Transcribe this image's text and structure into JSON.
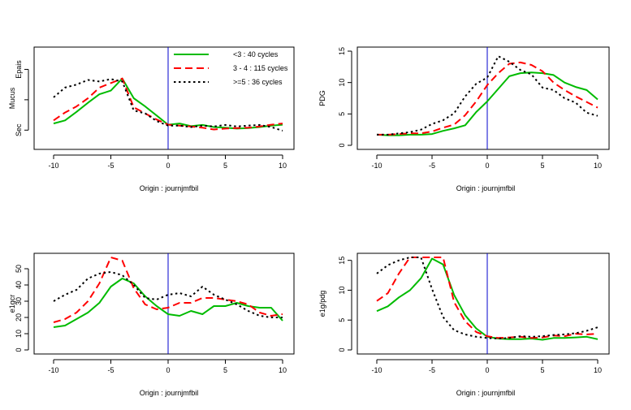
{
  "chart_data": [
    {
      "type": "line",
      "xlabel": "Origin :  journjmfbil",
      "ylabel": "Mucus",
      "xlim": [
        -10,
        10
      ],
      "x_ticks": [
        -10,
        -5,
        0,
        5,
        10
      ],
      "y_scale": "ordinal",
      "ylim": [
        0.5,
        3.6
      ],
      "y_ticks": [
        {
          "value": 1,
          "label": "Sec"
        },
        {
          "value": 2,
          "label": ""
        },
        {
          "value": 3,
          "label": "Epais"
        }
      ],
      "vline_x": 0,
      "legend": {
        "position": "top-right"
      },
      "series": [
        {
          "name": "<3 : 40 cycles",
          "color": "#00bb00",
          "dash": "solid",
          "x": [
            -10,
            -9,
            -8,
            -7,
            -6,
            -5,
            -4,
            -3,
            -2,
            -1,
            0,
            1,
            2,
            3,
            4,
            5,
            6,
            7,
            8,
            9,
            10
          ],
          "y": [
            1.22,
            1.32,
            1.6,
            1.9,
            2.18,
            2.3,
            2.7,
            2.05,
            1.78,
            1.48,
            1.18,
            1.22,
            1.13,
            1.17,
            1.1,
            1.08,
            1.05,
            1.07,
            1.1,
            1.15,
            1.18
          ]
        },
        {
          "name": "3 - 4 : 115 cycles",
          "color": "#ff0000",
          "dash": "dashed",
          "x": [
            -10,
            -9,
            -8,
            -7,
            -6,
            -5,
            -4,
            -3,
            -2,
            -1,
            0,
            1,
            2,
            3,
            4,
            5,
            6,
            7,
            8,
            9,
            10
          ],
          "y": [
            1.32,
            1.58,
            1.78,
            2.05,
            2.4,
            2.55,
            2.7,
            1.75,
            1.55,
            1.35,
            1.18,
            1.15,
            1.12,
            1.08,
            1.02,
            1.05,
            1.07,
            1.08,
            1.12,
            1.18,
            1.22
          ]
        },
        {
          "name": ">=5 : 36 cycles",
          "color": "#000000",
          "dash": "dotted",
          "x": [
            -10,
            -9,
            -8,
            -7,
            -6,
            -5,
            -4,
            -3,
            -2,
            -1,
            0,
            1,
            2,
            3,
            4,
            5,
            6,
            7,
            8,
            9,
            10
          ],
          "y": [
            2.08,
            2.4,
            2.5,
            2.65,
            2.6,
            2.68,
            2.6,
            1.65,
            1.55,
            1.3,
            1.15,
            1.15,
            1.1,
            1.15,
            1.12,
            1.17,
            1.12,
            1.15,
            1.17,
            1.1,
            0.98
          ]
        }
      ]
    },
    {
      "type": "line",
      "xlabel": "Origin :  journjmfbil",
      "ylabel": "PDG",
      "xlim": [
        -10,
        10
      ],
      "x_ticks": [
        -10,
        -5,
        0,
        5,
        10
      ],
      "ylim": [
        0,
        15
      ],
      "y_ticks": [
        {
          "value": 0,
          "label": "0"
        },
        {
          "value": 5,
          "label": "5"
        },
        {
          "value": 10,
          "label": "10"
        },
        {
          "value": 15,
          "label": "15"
        }
      ],
      "vline_x": 0,
      "series": [
        {
          "color": "#00bb00",
          "dash": "solid",
          "x": [
            -10,
            -9,
            -8,
            -7,
            -6,
            -5,
            -4,
            -3,
            -2,
            -1,
            0,
            1,
            2,
            3,
            4,
            5,
            6,
            7,
            8,
            9,
            10
          ],
          "y": [
            1.7,
            1.6,
            1.6,
            1.7,
            1.7,
            1.8,
            2.3,
            2.7,
            3.2,
            5.3,
            7.0,
            9.0,
            11.0,
            11.5,
            11.6,
            11.5,
            11.2,
            10.0,
            9.3,
            8.8,
            7.3
          ]
        },
        {
          "color": "#ff0000",
          "dash": "dashed",
          "x": [
            -10,
            -9,
            -8,
            -7,
            -6,
            -5,
            -4,
            -3,
            -2,
            -1,
            0,
            1,
            2,
            3,
            4,
            5,
            6,
            7,
            8,
            9,
            10
          ],
          "y": [
            1.7,
            1.7,
            1.8,
            1.9,
            1.9,
            2.2,
            2.8,
            3.3,
            4.8,
            7.0,
            9.6,
            11.5,
            13.0,
            13.2,
            12.8,
            11.8,
            10.0,
            8.8,
            7.8,
            6.9,
            6.0
          ]
        },
        {
          "color": "#000000",
          "dash": "dotted",
          "x": [
            -10,
            -9,
            -8,
            -7,
            -6,
            -5,
            -4,
            -3,
            -2,
            -1,
            0,
            1,
            2,
            3,
            4,
            5,
            6,
            7,
            8,
            9,
            10
          ],
          "y": [
            1.7,
            1.7,
            1.9,
            2.1,
            2.5,
            3.4,
            4.0,
            5.1,
            7.8,
            9.8,
            10.8,
            14.2,
            13.3,
            12.0,
            11.3,
            9.2,
            8.8,
            7.5,
            6.8,
            5.2,
            4.7
          ]
        }
      ]
    },
    {
      "type": "line",
      "xlabel": "Origin :  journjmfbil",
      "ylabel": "e1gcr",
      "xlim": [
        -10,
        10
      ],
      "x_ticks": [
        -10,
        -5,
        0,
        5,
        10
      ],
      "ylim": [
        0,
        57
      ],
      "y_ticks": [
        {
          "value": 0,
          "label": "0"
        },
        {
          "value": 10,
          "label": "10"
        },
        {
          "value": 20,
          "label": "20"
        },
        {
          "value": 30,
          "label": "30"
        },
        {
          "value": 40,
          "label": "40"
        },
        {
          "value": 50,
          "label": "50"
        }
      ],
      "vline_x": 0,
      "series": [
        {
          "color": "#00bb00",
          "dash": "solid",
          "x": [
            -10,
            -9,
            -8,
            -7,
            -6,
            -5,
            -4,
            -3,
            -2,
            -1,
            0,
            1,
            2,
            3,
            4,
            5,
            6,
            7,
            8,
            9,
            10
          ],
          "y": [
            14,
            15,
            19,
            23,
            29,
            39,
            44,
            41,
            33,
            27,
            22,
            21,
            24,
            22,
            27,
            27,
            29,
            27,
            26,
            26,
            18
          ]
        },
        {
          "color": "#ff0000",
          "dash": "dashed",
          "x": [
            -10,
            -9,
            -8,
            -7,
            -6,
            -5,
            -4,
            -3,
            -2,
            -1,
            0,
            1,
            2,
            3,
            4,
            5,
            6,
            7,
            8,
            9,
            10
          ],
          "y": [
            17,
            19,
            23,
            30,
            41,
            57,
            55,
            38,
            28,
            25,
            26,
            29,
            29,
            32,
            32,
            31,
            30,
            28,
            23,
            21,
            22
          ]
        },
        {
          "color": "#000000",
          "dash": "dotted",
          "x": [
            -10,
            -9,
            -8,
            -7,
            -6,
            -5,
            -4,
            -3,
            -2,
            -1,
            0,
            1,
            2,
            3,
            4,
            5,
            6,
            7,
            8,
            9,
            10
          ],
          "y": [
            30,
            34,
            37,
            44,
            47,
            48,
            46,
            40,
            32,
            31,
            34,
            35,
            33,
            39,
            34,
            31,
            28,
            24,
            21,
            20,
            20
          ]
        }
      ]
    },
    {
      "type": "line",
      "xlabel": "Origin :  journjmfbil",
      "ylabel": "e1g/pdg",
      "xlim": [
        -10,
        10
      ],
      "x_ticks": [
        -10,
        -5,
        0,
        5,
        10
      ],
      "ylim": [
        0,
        15.5
      ],
      "y_ticks": [
        {
          "value": 0,
          "label": "0"
        },
        {
          "value": 5,
          "label": "5"
        },
        {
          "value": 10,
          "label": "10"
        },
        {
          "value": 15,
          "label": "15"
        }
      ],
      "vline_x": 0,
      "series": [
        {
          "color": "#00bb00",
          "dash": "solid",
          "x": [
            -10,
            -9,
            -8,
            -7,
            -6,
            -5,
            -4,
            -3,
            -2,
            -1,
            0,
            1,
            2,
            3,
            4,
            5,
            6,
            7,
            8,
            9,
            10
          ],
          "y": [
            6.5,
            7.3,
            8.8,
            10.0,
            12.0,
            15.3,
            14.3,
            9.2,
            5.8,
            3.6,
            2.2,
            1.9,
            1.8,
            1.8,
            1.9,
            1.7,
            2.0,
            2.0,
            2.1,
            2.2,
            1.8
          ]
        },
        {
          "color": "#ff0000",
          "dash": "dashed",
          "x": [
            -10,
            -9,
            -8,
            -7,
            -6,
            -5,
            -4,
            -3,
            -2,
            -1,
            0,
            1,
            2,
            3,
            4,
            5,
            6,
            7,
            8,
            9,
            10
          ],
          "y": [
            8.2,
            9.5,
            12.8,
            15.5,
            15.5,
            15.5,
            15.5,
            8.0,
            4.8,
            3.0,
            2.3,
            2.0,
            2.1,
            2.2,
            2.0,
            2.1,
            2.4,
            2.3,
            2.7,
            2.6,
            2.7
          ]
        },
        {
          "color": "#000000",
          "dash": "dotted",
          "x": [
            -10,
            -9,
            -8,
            -7,
            -6,
            -5,
            -4,
            -3,
            -2,
            -1,
            0,
            1,
            2,
            3,
            4,
            5,
            6,
            7,
            8,
            9,
            10
          ],
          "y": [
            12.8,
            14.2,
            15.0,
            15.5,
            15.5,
            10.2,
            5.5,
            3.3,
            2.6,
            2.2,
            2.0,
            1.9,
            2.0,
            2.3,
            2.2,
            2.3,
            2.5,
            2.6,
            2.8,
            3.2,
            3.8
          ]
        }
      ]
    }
  ]
}
